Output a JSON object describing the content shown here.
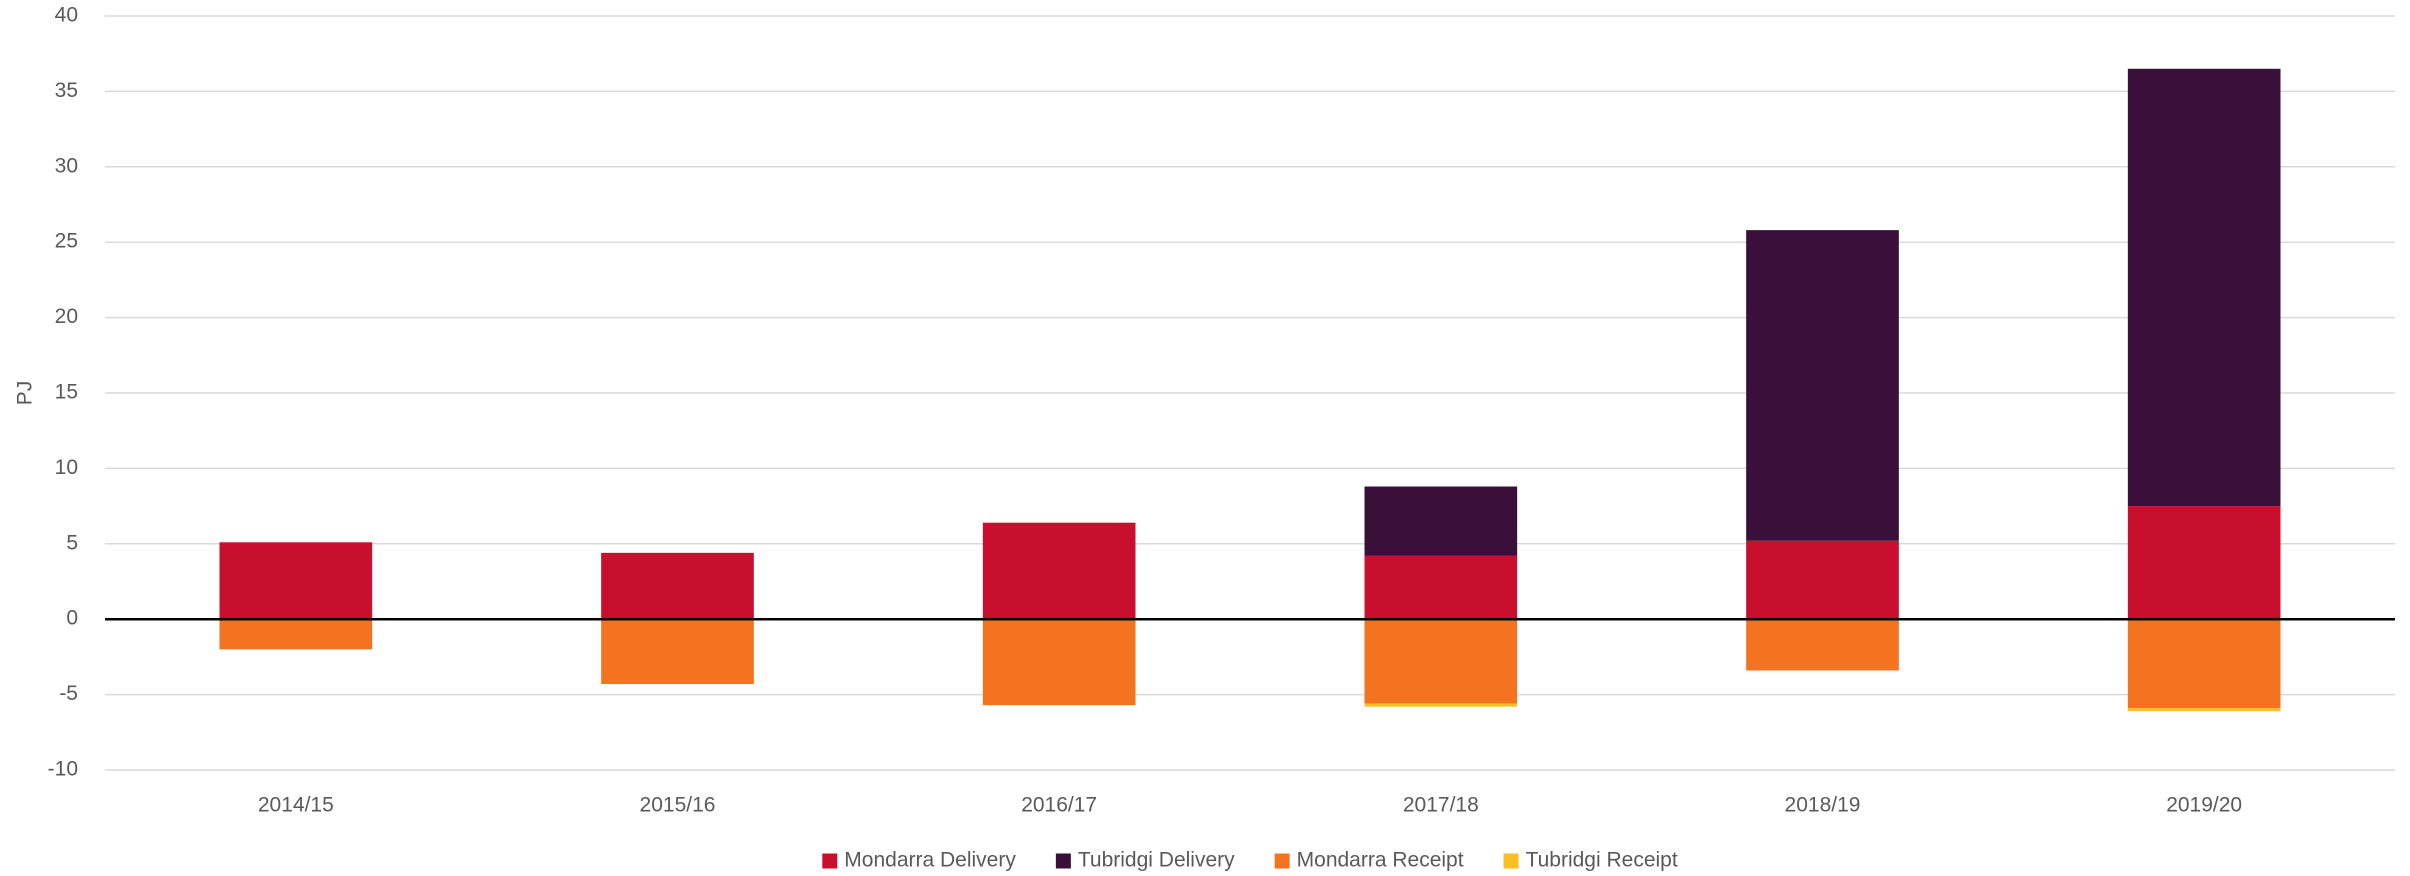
{
  "chart_data": {
    "type": "bar",
    "stacked": true,
    "y_label": "PJ",
    "categories": [
      "2014/15",
      "2015/16",
      "2016/17",
      "2017/18",
      "2018/19",
      "2019/20"
    ],
    "series": [
      {
        "name": "Mondarra Delivery",
        "color": "#c8102e",
        "values": [
          5.1,
          4.4,
          6.4,
          4.2,
          5.2,
          7.5
        ]
      },
      {
        "name": "Tubridgi Delivery",
        "color": "#3a0f3a",
        "values": [
          0,
          0,
          0,
          4.6,
          20.6,
          29.0
        ]
      },
      {
        "name": "Mondarra Receipt",
        "color": "#f37321",
        "values": [
          -2.0,
          -4.3,
          -5.7,
          -5.6,
          -3.4,
          -5.9
        ]
      },
      {
        "name": "Tubridgi Receipt",
        "color": "#fbbf24",
        "values": [
          0,
          0,
          0,
          -0.2,
          0,
          -0.2
        ]
      }
    ],
    "ylim": [
      -10,
      40
    ],
    "yticks": [
      -10,
      -5,
      0,
      5,
      10,
      15,
      20,
      25,
      30,
      35,
      40
    ],
    "grid": true,
    "legend": "bottom"
  }
}
